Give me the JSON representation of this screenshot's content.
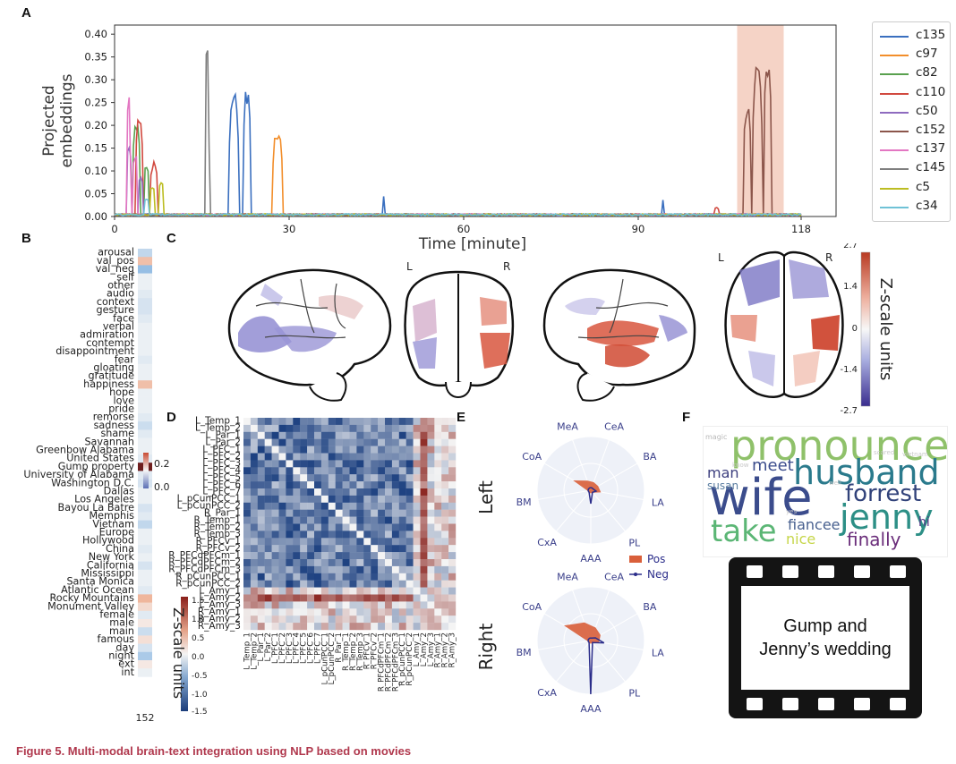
{
  "panel_labels": {
    "a": "A",
    "b": "B",
    "c": "C",
    "d": "D",
    "e": "E",
    "f": "F"
  },
  "caption": "Figure 5.  Multi-modal brain-text integration using NLP based on movies",
  "panel_a": {
    "ylabel_line1": "Projected",
    "ylabel_line2": "embeddings",
    "xlabel": "Time [minute]",
    "chart_data": {
      "type": "line",
      "xlabel": "Time [minute]",
      "ylabel": "Projected embeddings",
      "xticks": [
        "0",
        "30",
        "60",
        "90",
        "118"
      ],
      "yticks": [
        "0.00",
        "0.05",
        "0.10",
        "0.15",
        "0.20",
        "0.25",
        "0.30",
        "0.35",
        "0.40"
      ],
      "xlim": [
        0,
        124
      ],
      "ylim": [
        0,
        0.42
      ],
      "highlight_span": [
        107,
        115
      ],
      "highlight_color": "#f2c4b3",
      "series": [
        {
          "name": "c135",
          "color": "#3a6fbf",
          "peaks": [
            [
              19.5,
              21.5,
              0.27
            ],
            [
              22,
              23.5,
              0.28
            ],
            [
              46,
              46.5,
              0.05
            ],
            [
              94,
              94.5,
              0.04
            ]
          ]
        },
        {
          "name": "c97",
          "color": "#f28e2b",
          "peaks": [
            [
              27,
              29,
              0.19
            ]
          ]
        },
        {
          "name": "c82",
          "color": "#59a14f",
          "peaks": [
            [
              3,
              4.5,
              0.2
            ],
            [
              5,
              6,
              0.12
            ]
          ]
        },
        {
          "name": "c110",
          "color": "#d1493f",
          "peaks": [
            [
              3.5,
              5,
              0.22
            ],
            [
              6,
              7.5,
              0.12
            ],
            [
              103,
              104,
              0.02
            ]
          ]
        },
        {
          "name": "c50",
          "color": "#8e6bbf",
          "peaks": [
            [
              2,
              3,
              0.16
            ],
            [
              4,
              5,
              0.09
            ]
          ]
        },
        {
          "name": "c152",
          "color": "#8c564b",
          "peaks": [
            [
              108,
              109.5,
              0.24
            ],
            [
              109.5,
              111.5,
              0.33
            ],
            [
              111.5,
              113,
              0.34
            ]
          ]
        },
        {
          "name": "c137",
          "color": "#e377c2",
          "peaks": [
            [
              2,
              2.8,
              0.27
            ],
            [
              3,
              4,
              0.14
            ]
          ]
        },
        {
          "name": "c145",
          "color": "#7f7f7f",
          "peaks": [
            [
              15.5,
              16.3,
              0.4
            ]
          ]
        },
        {
          "name": "c5",
          "color": "#bcbd22",
          "peaks": [
            [
              6,
              7,
              0.07
            ],
            [
              7.5,
              8.5,
              0.08
            ]
          ]
        },
        {
          "name": "c34",
          "color": "#6fc2d6",
          "peaks": [
            [
              5,
              6,
              0.04
            ]
          ]
        }
      ]
    }
  },
  "panel_b": {
    "labels": [
      "arousal",
      "val_pos",
      "val_neg",
      "self",
      "other",
      "audio",
      "context",
      "gesture",
      "face",
      "verbal",
      "admiration",
      "contempt",
      "disappointment",
      "fear",
      "gloating",
      "gratitude",
      "happiness",
      "hope",
      "love",
      "pride",
      "remorse",
      "sadness",
      "shame",
      "Savannah",
      "Greenbow Alabama",
      "United States",
      "Gump property",
      "University of Alabama",
      "Washington D.C.",
      "Dallas",
      "Los Angeles",
      "Bayou La Batre",
      "Memphis",
      "Vietnam",
      "Europe",
      "Hollywood",
      "China",
      "New York",
      "California",
      "Mississippi",
      "Santa Monica",
      "Atlantic Ocean",
      "Rocky Mountains",
      "Monument Valley",
      "female",
      "male",
      "main",
      "famous",
      "day",
      "night",
      "ext",
      "int"
    ],
    "values": [
      -0.05,
      0.12,
      -0.09,
      -0.01,
      -0.01,
      -0.02,
      -0.03,
      -0.03,
      -0.02,
      -0.01,
      -0.01,
      -0.01,
      -0.01,
      -0.02,
      -0.01,
      -0.01,
      0.12,
      -0.01,
      -0.01,
      -0.01,
      -0.02,
      -0.04,
      -0.02,
      -0.01,
      -0.01,
      -0.02,
      0.33,
      -0.02,
      -0.03,
      -0.01,
      -0.01,
      -0.03,
      -0.02,
      -0.05,
      -0.01,
      -0.01,
      -0.02,
      -0.01,
      -0.03,
      -0.01,
      -0.01,
      -0.02,
      0.14,
      0.06,
      -0.02,
      0.03,
      -0.04,
      0.05,
      -0.03,
      -0.07,
      0.03,
      -0.01
    ],
    "colorbar_ticks": [
      "0.2",
      "0.0"
    ],
    "bottom_label": "152"
  },
  "panel_c": {
    "left_label": "L",
    "right_label": "R",
    "left_label_2": "L",
    "right_label_2": "R",
    "colorbar_ticks": [
      "2.7",
      "1.4",
      "0",
      "-1.4",
      "-2.7"
    ],
    "colorbar_title": "Z-scale units"
  },
  "panel_d": {
    "rows": [
      "L_Temp_1",
      "L_Temp_2",
      "L_Par_1",
      "L_Par_2",
      "L_PFC_1",
      "L_PFC_2",
      "L_PFC_3",
      "L_PFC_4",
      "L_PFC_5",
      "L_PFC_6",
      "L_PFC_7",
      "L_pCunPCC_1",
      "L_pCunPCC_2",
      "R_Par_1",
      "R_Temp_1",
      "R_Temp_2",
      "R_Temp_3",
      "R_PFCv_1",
      "R_PFCv_2",
      "R_PFCdPFCm_1",
      "R_PFCdPFCm_2",
      "R_PFCdPFCm_3",
      "R_pCunPCC_1",
      "R_pCunPCC_2",
      "L_Amy_1",
      "L_Amy_2",
      "L_Amy_3",
      "R_Amy_1",
      "R_Amy_2",
      "R_Amy_3"
    ],
    "colorbar_ticks": [
      "1.5",
      "1.0",
      "0.5",
      "0.0",
      "-0.5",
      "-1.0",
      "-1.5"
    ],
    "colorbar_title": "Z-scale units"
  },
  "panel_e": {
    "left_title": "Left",
    "right_title": "Right",
    "axes": [
      "CeA",
      "BA",
      "LA",
      "PL",
      "AAA",
      "CxA",
      "BM",
      "CoA",
      "MeA"
    ],
    "legend_pos": "Pos",
    "legend_neg": "Neg",
    "pos_color": "#d95f3a",
    "neg_color": "#2b2d8a"
  },
  "panel_f": {
    "words": [
      {
        "text": "pronounce",
        "color": "#8fc16a"
      },
      {
        "text": "husband",
        "color": "#2a7a8c"
      },
      {
        "text": "wife",
        "color": "#3b4c8c"
      },
      {
        "text": "forrest",
        "color": "#31427a"
      },
      {
        "text": "jenny",
        "color": "#2c8f86"
      },
      {
        "text": "take",
        "color": "#5bb675"
      },
      {
        "text": "meet",
        "color": "#3b4c8c"
      },
      {
        "text": "man",
        "color": "#3d3f7f"
      },
      {
        "text": "susan",
        "color": "#5a7da0"
      },
      {
        "text": "fiancee",
        "color": "#48608f"
      },
      {
        "text": "nice",
        "color": "#c6d64a"
      },
      {
        "text": "finally",
        "color": "#6a2d7a"
      },
      {
        "text": "hi",
        "color": "#5b3a8a"
      },
      {
        "text": "magic",
        "color": "#b8b8b8"
      },
      {
        "text": "scared",
        "color": "#c9c9c9"
      },
      {
        "text": "vietnam",
        "color": "#c9c9c9"
      },
      {
        "text": "know",
        "color": "#c9c9c9"
      },
      {
        "text": "yes",
        "color": "#c9c9c9"
      },
      {
        "text": "well",
        "color": "#c9c9c9"
      }
    ],
    "film_text": "Gump and Jenny’s wedding"
  }
}
